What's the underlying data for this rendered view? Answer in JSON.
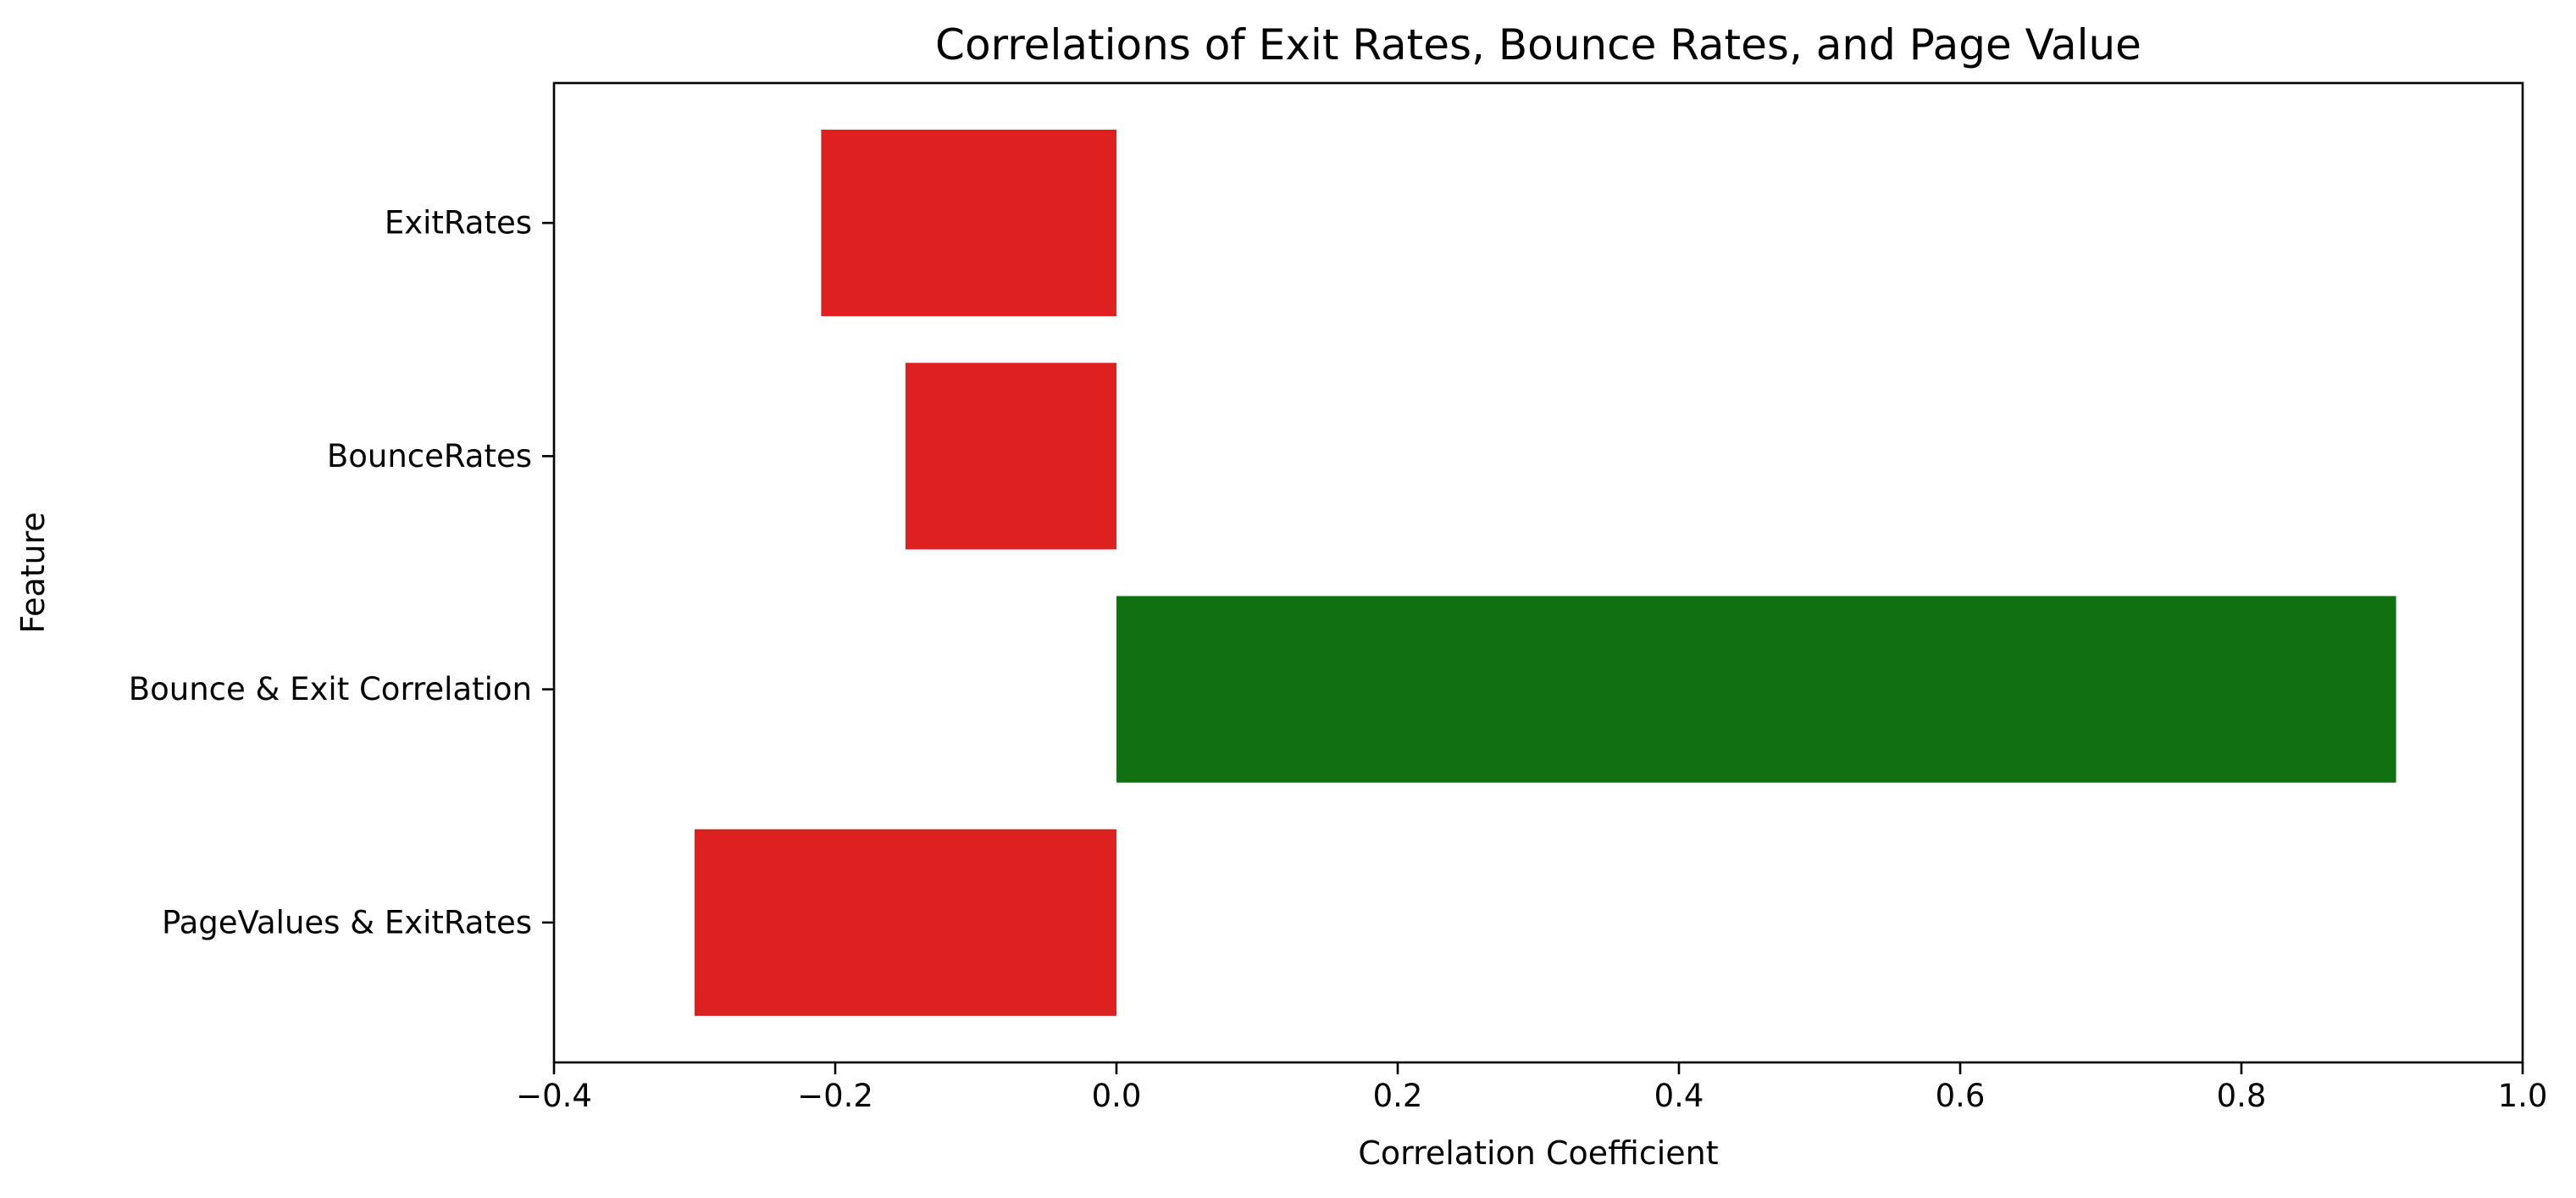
{
  "chart_data": {
    "type": "bar",
    "orientation": "horizontal",
    "title": "Correlations of Exit Rates, Bounce Rates, and Page Value",
    "xlabel": "Correlation Coefficient",
    "ylabel": "Feature",
    "xlim": [
      -0.4,
      1.0
    ],
    "x_ticks": [
      -0.4,
      -0.2,
      0.0,
      0.2,
      0.4,
      0.6,
      0.8,
      1.0
    ],
    "x_tick_labels": [
      "−0.4",
      "−0.2",
      "0.0",
      "0.2",
      "0.4",
      "0.6",
      "0.8",
      "1.0"
    ],
    "categories": [
      "ExitRates",
      "BounceRates",
      "Bounce & Exit Correlation",
      "PageValues & ExitRates"
    ],
    "values": [
      -0.21,
      -0.15,
      0.91,
      -0.3
    ],
    "bar_colors": [
      "#de2020",
      "#de2020",
      "#117011",
      "#de2020"
    ],
    "grid": false,
    "legend": "none"
  }
}
